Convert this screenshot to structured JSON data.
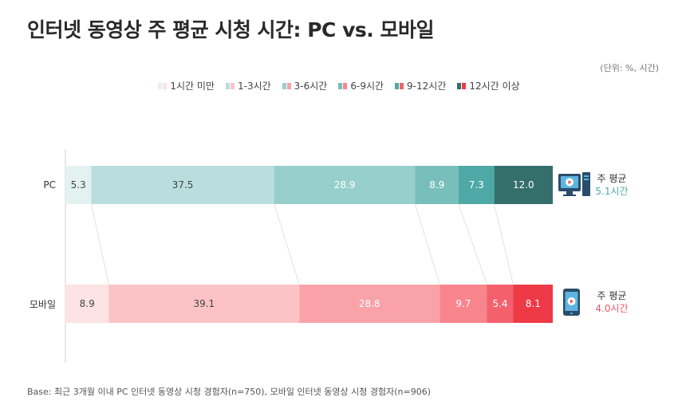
{
  "title": "인터넷 동영상 주 평균 시청 시간: PC vs. 모바일",
  "unit_note": "(단위: %, 시간)",
  "footnote": "Base: 최근 3개월 이내 PC 인터넷 동영상 시청 경험자(n=750), 모바일 인터넷 동영상 시청 경험자(n=906)",
  "colors": {
    "pc": [
      "#e3f2f1",
      "#b9dedd",
      "#97cfcc",
      "#78bfbb",
      "#4ea9a6",
      "#356f6b"
    ],
    "mobile": [
      "#fde3e3",
      "#fbc3c6",
      "#f9a2a8",
      "#f8858d",
      "#f4606b",
      "#ee3a47"
    ]
  },
  "rows": [
    {
      "label": "PC",
      "avg_title": "주 평균",
      "avg_value": "5.1시간",
      "avg_color": "#4ea9a6",
      "icon": "desktop-computer-icon"
    },
    {
      "label": "모바일",
      "avg_title": "주 평균",
      "avg_value": "4.0시간",
      "avg_color": "#ee5a64",
      "icon": "smartphone-icon"
    }
  ],
  "chart_data": {
    "type": "bar",
    "orientation": "horizontal",
    "stacked": true,
    "categories": [
      "PC",
      "모바일"
    ],
    "series": [
      {
        "name": "1시간 미만",
        "values": [
          5.3,
          8.9
        ]
      },
      {
        "name": "1-3시간",
        "values": [
          37.5,
          39.1
        ]
      },
      {
        "name": "3-6시간",
        "values": [
          28.9,
          28.8
        ]
      },
      {
        "name": "6-9시간",
        "values": [
          8.9,
          9.7
        ]
      },
      {
        "name": "9-12시간",
        "values": [
          7.3,
          5.4
        ]
      },
      {
        "name": "12시간 이상",
        "values": [
          12.0,
          8.1
        ]
      }
    ],
    "xlim": [
      0,
      100
    ],
    "legend": "top-center"
  }
}
